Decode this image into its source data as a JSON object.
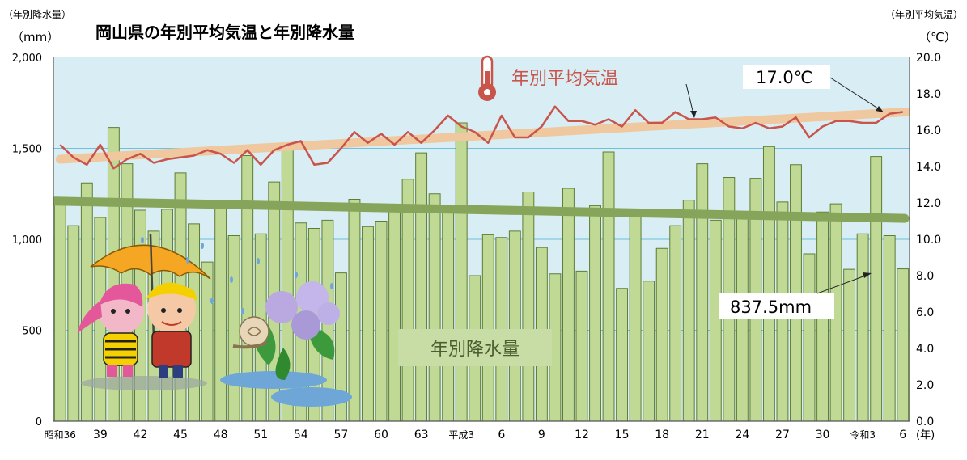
{
  "title": "岡山県の年別平均気温と年別降水量",
  "left_axis": {
    "caption": "（年別降水量）",
    "unit": "（mm）",
    "ticks": [
      "0",
      "500",
      "1,000",
      "1,500",
      "2,000"
    ],
    "values": [
      0,
      500,
      1000,
      1500,
      2000
    ]
  },
  "right_axis": {
    "caption": "（年別平均気温）",
    "unit": "（℃）",
    "ticks": [
      "0.0",
      "2.0",
      "4.0",
      "6.0",
      "8.0",
      "10.0",
      "12.0",
      "14.0",
      "16.0",
      "18.0",
      "20.0"
    ],
    "values": [
      0,
      2,
      4,
      6,
      8,
      10,
      12,
      14,
      16,
      18,
      20
    ]
  },
  "x_unit": "(年)",
  "labels": {
    "temp_series": "年別平均気温",
    "rain_series": "年別降水量",
    "temp_callout": "17.0℃",
    "rain_callout": "837.5mm"
  },
  "colors": {
    "plot_bg": "#d9eef4",
    "bar_fill": "#c0d994",
    "bar_stroke": "#5d7c36",
    "temp_line": "#c8544b",
    "temp_trend": "#efc8a0",
    "rain_trend": "#86a55a",
    "grid": "#6fc0d8",
    "temp_axis_text": "#c8544b",
    "rain_axis_text": "#5d7a2e"
  },
  "decorations": {
    "thermometer": "thermometer-icon",
    "characters": "umbrella-mascots-illustration",
    "hydrangea": "hydrangea-snail-illustration"
  },
  "chart_data": {
    "type": "bar",
    "x_tick_labels": [
      "昭和36",
      "39",
      "42",
      "45",
      "48",
      "51",
      "54",
      "57",
      "60",
      "63",
      "平成3",
      "6",
      "9",
      "12",
      "15",
      "18",
      "21",
      "24",
      "27",
      "30",
      "令和3",
      "6"
    ],
    "years": [
      1961,
      1962,
      1963,
      1964,
      1965,
      1966,
      1967,
      1968,
      1969,
      1970,
      1971,
      1972,
      1973,
      1974,
      1975,
      1976,
      1977,
      1978,
      1979,
      1980,
      1981,
      1982,
      1983,
      1984,
      1985,
      1986,
      1987,
      1988,
      1989,
      1990,
      1991,
      1992,
      1993,
      1994,
      1995,
      1996,
      1997,
      1998,
      1999,
      2000,
      2001,
      2002,
      2003,
      2004,
      2005,
      2006,
      2007,
      2008,
      2009,
      2010,
      2011,
      2012,
      2013,
      2014,
      2015,
      2016,
      2017,
      2018,
      2019,
      2020,
      2021,
      2022,
      2023,
      2024
    ],
    "series": [
      {
        "name": "年別降水量",
        "type": "bar",
        "axis": "left",
        "values": [
          1215,
          1075,
          1310,
          1120,
          1615,
          1415,
          1160,
          1045,
          1165,
          1365,
          1085,
          875,
          1205,
          1020,
          1460,
          1030,
          1315,
          1530,
          1090,
          1060,
          1105,
          815,
          1220,
          1070,
          1100,
          1155,
          1330,
          1475,
          1250,
          1155,
          1640,
          800,
          1025,
          1010,
          1045,
          1260,
          955,
          810,
          1280,
          825,
          1185,
          1480,
          730,
          1165,
          770,
          950,
          1075,
          1215,
          1415,
          1105,
          1340,
          1145,
          1335,
          1510,
          1205,
          1410,
          920,
          1150,
          1195,
          835,
          1030,
          1455,
          1020,
          837.5
        ]
      },
      {
        "name": "年別平均気温",
        "type": "line",
        "axis": "right",
        "values": [
          15.2,
          14.5,
          14.1,
          15.2,
          13.9,
          14.4,
          14.7,
          14.2,
          14.4,
          14.5,
          14.6,
          14.9,
          14.7,
          14.2,
          14.9,
          14.1,
          14.9,
          15.2,
          15.4,
          14.1,
          14.2,
          15.0,
          15.9,
          15.3,
          15.8,
          15.2,
          15.9,
          15.3,
          16.0,
          16.8,
          16.2,
          15.9,
          15.3,
          16.8,
          15.6,
          15.6,
          16.2,
          17.3,
          16.5,
          16.5,
          16.3,
          16.6,
          16.2,
          17.1,
          16.4,
          16.4,
          17.0,
          16.6,
          16.6,
          16.7,
          16.2,
          16.1,
          16.4,
          16.1,
          16.2,
          16.7,
          15.6,
          16.2,
          16.5,
          16.5,
          16.4,
          16.4,
          16.9,
          17.0
        ]
      }
    ],
    "trend_lines": [
      {
        "series": "年別平均気温",
        "axis": "right",
        "from": 14.4,
        "to": 17.0
      },
      {
        "series": "年別降水量",
        "axis": "left",
        "from": 1210,
        "to": 1115
      }
    ],
    "ylim_left": [
      0,
      2000
    ],
    "ylim_right": [
      0,
      20
    ],
    "grid": true
  }
}
